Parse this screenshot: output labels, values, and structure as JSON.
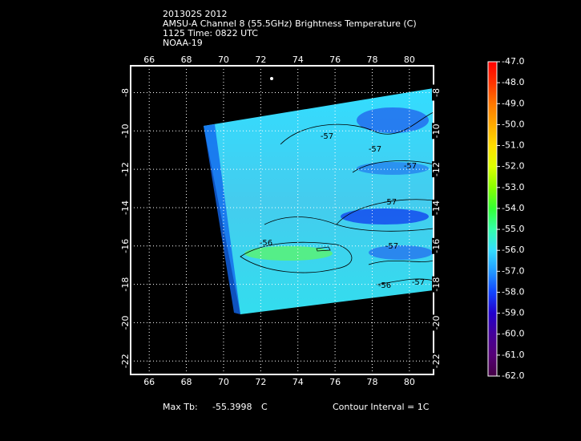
{
  "header": {
    "lines": [
      "201302S 2012",
      "AMSU-A Channel 8 (55.5GHz) Brightness Temperature (C)",
      "1125 Time: 0822 UTC",
      "NOAA-19"
    ]
  },
  "map": {
    "xlim": [
      65,
      81.3
    ],
    "xticks": [
      66,
      68,
      70,
      72,
      74,
      76,
      78,
      80
    ],
    "ylim": [
      -22.7,
      -6.6
    ],
    "yticks": [
      -8,
      -10,
      -12,
      -14,
      -16,
      -18,
      -20,
      -22
    ],
    "contour_labels": [
      "-57",
      "-57",
      "-57",
      "-56",
      "-57",
      "-57",
      "-56",
      "-57"
    ]
  },
  "colorbar": {
    "ticks": [
      {
        "value": -47,
        "label": "-47.0"
      },
      {
        "value": -48,
        "label": "-48.0"
      },
      {
        "value": -49,
        "label": "-49.0"
      },
      {
        "value": -50,
        "label": "-50.0"
      },
      {
        "value": -51,
        "label": "-51.0"
      },
      {
        "value": -52,
        "label": "-52.0"
      },
      {
        "value": -53,
        "label": "-53.0"
      },
      {
        "value": -54,
        "label": "-54.0"
      },
      {
        "value": -55,
        "label": "-55.0"
      },
      {
        "value": -56,
        "label": "-56.0"
      },
      {
        "value": -57,
        "label": "-57.0"
      },
      {
        "value": -58,
        "label": "-58.0"
      },
      {
        "value": -59,
        "label": "-59.0"
      },
      {
        "value": -60,
        "label": "-60.0"
      },
      {
        "value": -61,
        "label": "-61.0"
      },
      {
        "value": -62,
        "label": "-62.0"
      }
    ],
    "colors": [
      "#ff0000",
      "#ff3300",
      "#ff7700",
      "#ffaa00",
      "#ffdd00",
      "#ddff00",
      "#88ff00",
      "#33ff33",
      "#33ffaa",
      "#33ddff",
      "#2299ff",
      "#1144ff",
      "#2200cc",
      "#440099",
      "#550077",
      "#440044"
    ]
  },
  "footer": {
    "max_label": "Max Tb:",
    "max_value": "-55.3998",
    "max_unit": "C",
    "contour_interval": "Contour Interval = 1C"
  }
}
